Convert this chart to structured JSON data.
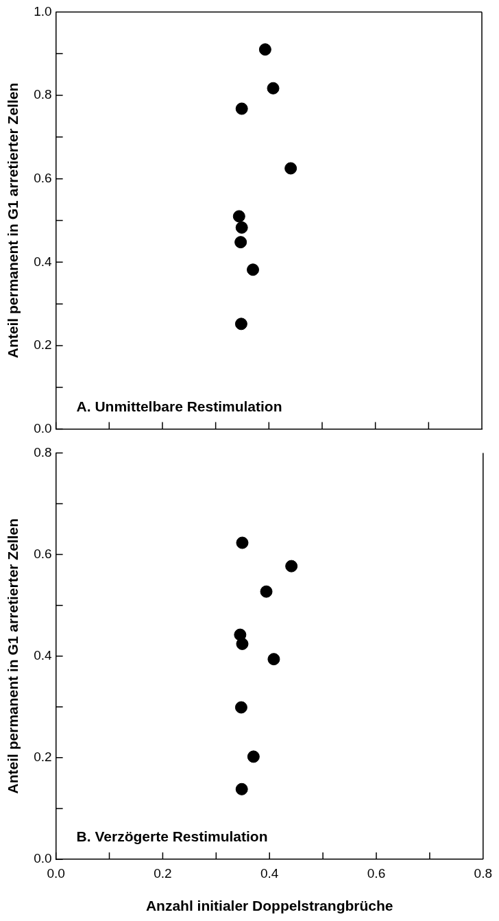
{
  "chart_data": [
    {
      "type": "scatter",
      "ylabel": "Anteil permanent in G1 arretierter Zellen",
      "annotations": [
        "A. Unmittelbare Restimulation"
      ],
      "series": [
        {
          "color": "#000000",
          "x": [
            0.393,
            0.408,
            0.349,
            0.441,
            0.344,
            0.349,
            0.347,
            0.37,
            0.348
          ],
          "values": [
            0.91,
            0.817,
            0.768,
            0.625,
            0.51,
            0.483,
            0.448,
            0.382,
            0.252
          ]
        }
      ],
      "xlim": [
        0,
        0.8
      ],
      "xticks": [
        {
          "value": 0,
          "label": null
        },
        {
          "value": 0.1,
          "label": null
        },
        {
          "value": 0.2,
          "label": null
        },
        {
          "value": 0.3,
          "label": null
        },
        {
          "value": 0.4,
          "label": null
        },
        {
          "value": 0.5,
          "label": null
        },
        {
          "value": 0.6,
          "label": null
        },
        {
          "value": 0.7,
          "label": null
        },
        {
          "value": 0.8,
          "label": null
        }
      ],
      "ylim": [
        0,
        1
      ],
      "yticks": [
        {
          "value": 0,
          "label": "0.0"
        },
        {
          "value": 0.1,
          "label": null
        },
        {
          "value": 0.2,
          "label": "0.2"
        },
        {
          "value": 0.3,
          "label": null
        },
        {
          "value": 0.4,
          "label": "0.4"
        },
        {
          "value": 0.5,
          "label": null
        },
        {
          "value": 0.6,
          "label": "0.6"
        },
        {
          "value": 0.7,
          "label": null
        },
        {
          "value": 0.8,
          "label": "0.8"
        },
        {
          "value": 0.9,
          "label": null
        },
        {
          "value": 1,
          "label": "1.0"
        }
      ],
      "tick_labels": "y",
      "marker": "circle",
      "legend": false
    },
    {
      "type": "scatter",
      "xlabel": "Anzahl initialer Doppelstrangbrüche",
      "ylabel": "Anteil permanent in G1 arretierter Zellen",
      "annotations": [
        "B. Verzögerte Restimulation"
      ],
      "series": [
        {
          "color": "#000000",
          "x": [
            0.349,
            0.441,
            0.394,
            0.345,
            0.349,
            0.408,
            0.347,
            0.37,
            0.348
          ],
          "values": [
            0.623,
            0.577,
            0.527,
            0.442,
            0.424,
            0.394,
            0.299,
            0.202,
            0.138
          ]
        }
      ],
      "xlim": [
        0,
        0.8
      ],
      "xticks": [
        {
          "value": 0,
          "label": "0.0"
        },
        {
          "value": 0.1,
          "label": null
        },
        {
          "value": 0.2,
          "label": "0.2"
        },
        {
          "value": 0.3,
          "label": null
        },
        {
          "value": 0.4,
          "label": "0.4"
        },
        {
          "value": 0.5,
          "label": null
        },
        {
          "value": 0.6,
          "label": "0.6"
        },
        {
          "value": 0.7,
          "label": null
        },
        {
          "value": 0.8,
          "label": "0.8"
        }
      ],
      "ylim": [
        0,
        0.8
      ],
      "yticks": [
        {
          "value": 0,
          "label": "0.0"
        },
        {
          "value": 0.1,
          "label": null
        },
        {
          "value": 0.2,
          "label": "0.2"
        },
        {
          "value": 0.3,
          "label": null
        },
        {
          "value": 0.4,
          "label": "0.4"
        },
        {
          "value": 0.5,
          "label": null
        },
        {
          "value": 0.6,
          "label": "0.6"
        },
        {
          "value": 0.7,
          "label": null
        },
        {
          "value": 0.8,
          "label": "0.8"
        }
      ],
      "marker": "circle",
      "legend": false
    }
  ]
}
